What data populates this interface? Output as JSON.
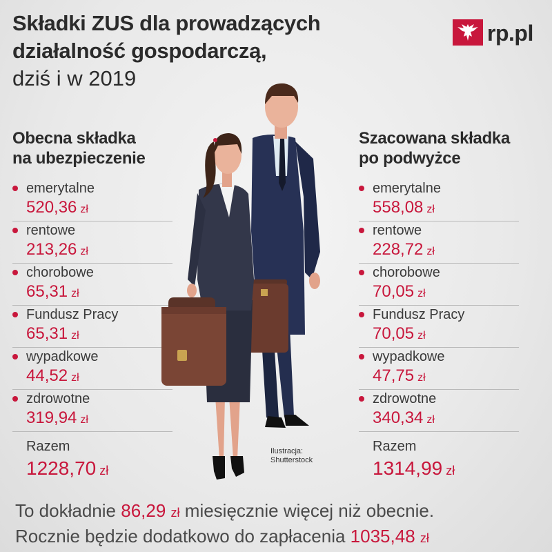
{
  "title": {
    "line1": "Składki ZUS dla prowadzących",
    "line2": "działalność gospodarczą,",
    "line3": "dziś i w 2019"
  },
  "logo": {
    "text": "rp.pl",
    "color": "#c8173c"
  },
  "left": {
    "heading": [
      "Obecna składka",
      "na ubezpieczenie"
    ],
    "items": [
      {
        "label": "emerytalne",
        "value": "520,36",
        "unit": "zł"
      },
      {
        "label": "rentowe",
        "value": "213,26",
        "unit": "zł"
      },
      {
        "label": "chorobowe",
        "value": "65,31",
        "unit": "zł"
      },
      {
        "label": "Fundusz Pracy",
        "value": "65,31",
        "unit": "zł"
      },
      {
        "label": "wypadkowe",
        "value": "44,52",
        "unit": "zł"
      },
      {
        "label": "zdrowotne",
        "value": "319,94",
        "unit": "zł"
      }
    ],
    "total": {
      "label": "Razem",
      "value": "1228,70",
      "unit": "zł"
    }
  },
  "right": {
    "heading": [
      "Szacowana składka",
      "po podwyżce"
    ],
    "items": [
      {
        "label": "emerytalne",
        "value": "558,08",
        "unit": "zł"
      },
      {
        "label": "rentowe",
        "value": "228,72",
        "unit": "zł"
      },
      {
        "label": "chorobowe",
        "value": "70,05",
        "unit": "zł"
      },
      {
        "label": "Fundusz Pracy",
        "value": "70,05",
        "unit": "zł"
      },
      {
        "label": "wypadkowe",
        "value": "47,75",
        "unit": "zł"
      },
      {
        "label": "zdrowotne",
        "value": "340,34",
        "unit": "zł"
      }
    ],
    "total": {
      "label": "Razem",
      "value": "1314,99",
      "unit": "zł"
    }
  },
  "credit": [
    "Ilustracja:",
    "Shutterstock"
  ],
  "summary": {
    "line1_prefix": "To dokładnie",
    "line1_value": "86,29",
    "line1_unit": "zł",
    "line1_suffix": "miesięcznie więcej niż obecnie.",
    "line2_prefix": "Rocznie będzie dodatkowo do zapłacenia",
    "line2_value": "1035,48",
    "line2_unit": "zł"
  },
  "colors": {
    "accent": "#c8173c",
    "text": "#2b2b2b"
  }
}
